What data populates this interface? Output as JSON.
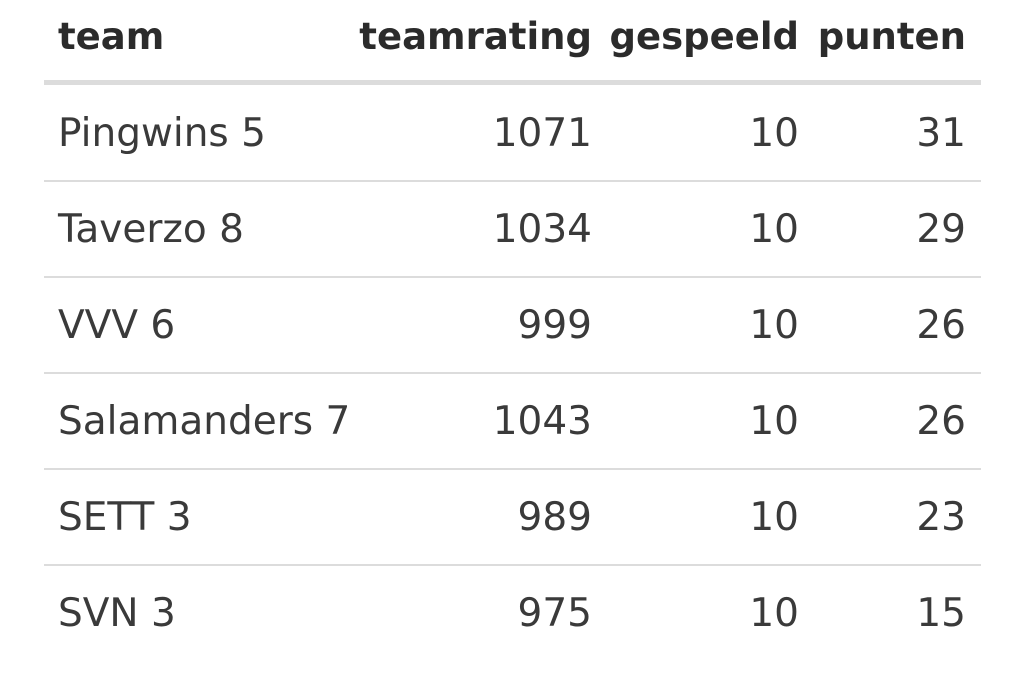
{
  "table": {
    "header": [
      "team",
      "teamrating",
      "gespeeld",
      "punten"
    ],
    "rows": [
      [
        "Pingwins 5",
        1071,
        10,
        31
      ],
      [
        "Taverzo 8",
        1034,
        10,
        29
      ],
      [
        "VVV 6",
        999,
        10,
        26
      ],
      [
        "Salamanders 7",
        1043,
        10,
        26
      ],
      [
        "SETT 3",
        989,
        10,
        23
      ],
      [
        "SVN 3",
        975,
        10,
        15
      ]
    ]
  }
}
